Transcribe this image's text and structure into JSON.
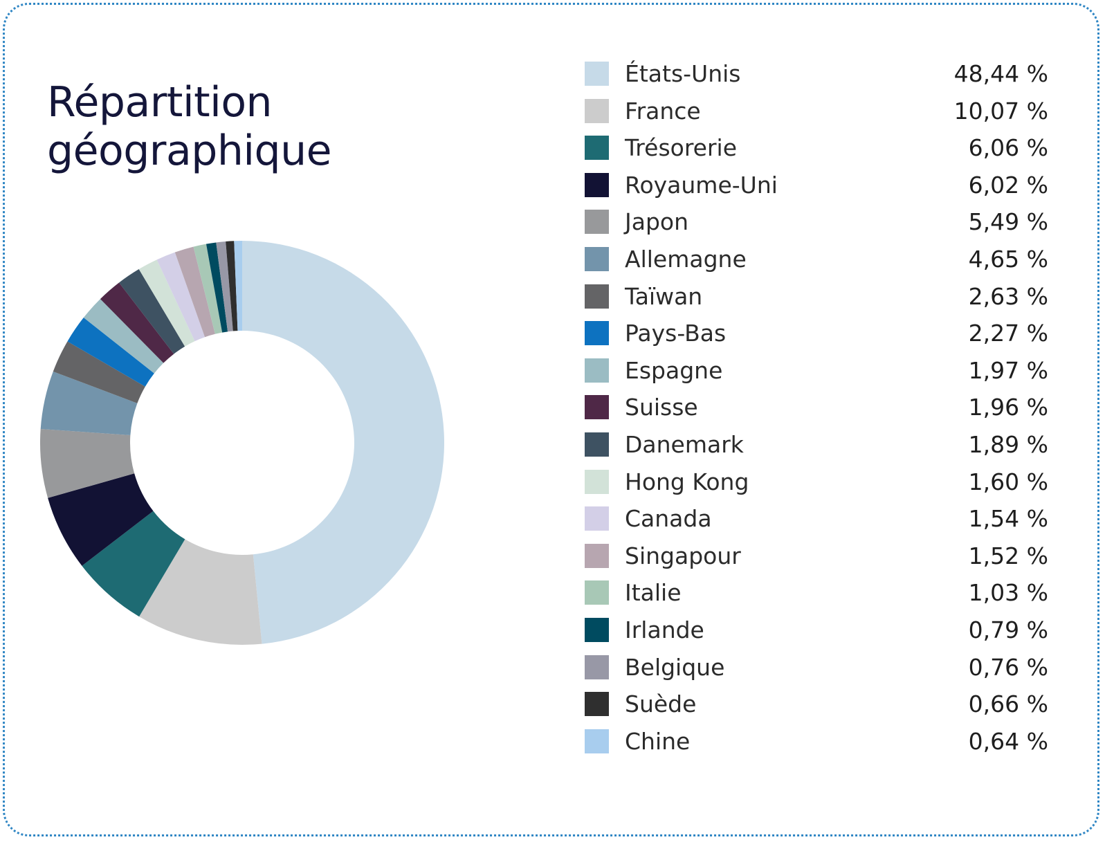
{
  "chart_data": {
    "type": "pie",
    "title": "Répartition géographique",
    "title_lines": [
      "Répartition",
      "géographique"
    ],
    "donut": true,
    "legend_position": "right",
    "slices": [
      {
        "label": "États-Unis",
        "value": 48.44,
        "value_text": "48,44 %",
        "color": "#c6dae8"
      },
      {
        "label": "France",
        "value": 10.07,
        "value_text": "10,07 %",
        "color": "#cccccc"
      },
      {
        "label": "Trésorerie",
        "value": 6.06,
        "value_text": "6,06 %",
        "color": "#1e6b73"
      },
      {
        "label": "Royaume-Uni",
        "value": 6.02,
        "value_text": "6,02 %",
        "color": "#121234"
      },
      {
        "label": "Japon",
        "value": 5.49,
        "value_text": "5,49 %",
        "color": "#98999b"
      },
      {
        "label": "Allemagne",
        "value": 4.65,
        "value_text": "4,65 %",
        "color": "#7394ab"
      },
      {
        "label": "Taïwan",
        "value": 2.63,
        "value_text": "2,63 %",
        "color": "#646466"
      },
      {
        "label": "Pays-Bas",
        "value": 2.27,
        "value_text": "2,27 %",
        "color": "#0d72c0"
      },
      {
        "label": "Espagne",
        "value": 1.97,
        "value_text": "1,97 %",
        "color": "#9bbcc3"
      },
      {
        "label": "Suisse",
        "value": 1.96,
        "value_text": "1,96 %",
        "color": "#4f2847"
      },
      {
        "label": "Danemark",
        "value": 1.89,
        "value_text": "1,89 %",
        "color": "#3e5262"
      },
      {
        "label": "Hong Kong",
        "value": 1.6,
        "value_text": "1,60 %",
        "color": "#d2e2d8"
      },
      {
        "label": "Canada",
        "value": 1.54,
        "value_text": "1,54 %",
        "color": "#d3cfe7"
      },
      {
        "label": "Singapour",
        "value": 1.52,
        "value_text": "1,52 %",
        "color": "#b7a6b0"
      },
      {
        "label": "Italie",
        "value": 1.03,
        "value_text": "1,03 %",
        "color": "#a8c8b6"
      },
      {
        "label": "Irlande",
        "value": 0.79,
        "value_text": "0,79 %",
        "color": "#004b60"
      },
      {
        "label": "Belgique",
        "value": 0.76,
        "value_text": "0,76 %",
        "color": "#9898a6"
      },
      {
        "label": "Suède",
        "value": 0.66,
        "value_text": "0,66 %",
        "color": "#2f2f2f"
      },
      {
        "label": "Chine",
        "value": 0.64,
        "value_text": "0,64 %",
        "color": "#a8cdee"
      }
    ]
  }
}
